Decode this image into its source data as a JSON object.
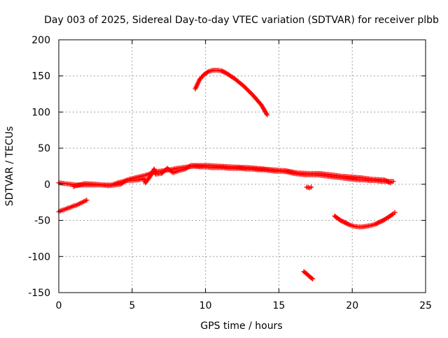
{
  "chart_data": {
    "type": "scatter",
    "title": "Day 003 of 2025, Sidereal Day-to-day VTEC variation (SDTVAR) for receiver plbb",
    "xlabel": "GPS time / hours",
    "ylabel": "SDTVAR / TECUs",
    "xlim": [
      0,
      25
    ],
    "ylim": [
      -150,
      200
    ],
    "xticks": [
      0,
      5,
      10,
      15,
      20,
      25
    ],
    "yticks": [
      -150,
      -100,
      -50,
      0,
      50,
      100,
      150,
      200
    ],
    "xtick_labels": [
      "0",
      "5",
      "10",
      "15",
      "20",
      "25"
    ],
    "ytick_labels": [
      "-150",
      "-100",
      "-50",
      "0",
      "50",
      "100",
      "150",
      "200"
    ],
    "grid": true,
    "legend": "none",
    "marker": "plus",
    "color": "#ff0000",
    "series": [
      {
        "name": "main-band",
        "points": [
          [
            0.0,
            2
          ],
          [
            0.4,
            1
          ],
          [
            0.8,
            0
          ],
          [
            1.2,
            -1
          ],
          [
            1.6,
            -1
          ],
          [
            2.0,
            -1
          ],
          [
            2.4,
            -1
          ],
          [
            2.8,
            -1
          ],
          [
            3.2,
            -1
          ],
          [
            3.6,
            -1
          ],
          [
            4.0,
            2
          ],
          [
            4.4,
            4
          ],
          [
            4.8,
            7
          ],
          [
            5.2,
            9
          ],
          [
            5.6,
            11
          ],
          [
            6.0,
            13
          ],
          [
            6.4,
            16
          ],
          [
            6.8,
            18
          ],
          [
            7.2,
            19
          ],
          [
            7.6,
            20
          ],
          [
            8.0,
            22
          ],
          [
            8.4,
            23
          ],
          [
            8.8,
            24
          ],
          [
            9.2,
            25
          ],
          [
            9.6,
            24
          ],
          [
            10.0,
            24
          ],
          [
            10.4,
            23
          ],
          [
            10.8,
            23
          ],
          [
            11.2,
            23
          ],
          [
            11.6,
            22
          ],
          [
            12.0,
            22
          ],
          [
            12.4,
            22
          ],
          [
            12.8,
            21
          ],
          [
            13.2,
            21
          ],
          [
            13.6,
            20
          ],
          [
            14.0,
            20
          ],
          [
            14.4,
            19
          ],
          [
            14.8,
            18
          ],
          [
            15.2,
            18
          ],
          [
            15.6,
            17
          ],
          [
            16.0,
            15
          ],
          [
            16.4,
            14
          ],
          [
            16.8,
            13
          ],
          [
            17.2,
            13
          ],
          [
            17.6,
            13
          ],
          [
            18.0,
            12
          ],
          [
            18.4,
            11
          ],
          [
            18.8,
            10
          ],
          [
            19.2,
            9
          ],
          [
            19.6,
            8
          ],
          [
            20.0,
            7
          ],
          [
            20.4,
            6
          ],
          [
            20.8,
            6
          ],
          [
            21.2,
            5
          ],
          [
            21.6,
            5
          ],
          [
            22.0,
            4
          ],
          [
            22.4,
            4
          ],
          [
            22.8,
            4
          ]
        ]
      },
      {
        "name": "main-band-scatter",
        "points": [
          [
            1.0,
            -3
          ],
          [
            1.8,
            1
          ],
          [
            2.6,
            0
          ],
          [
            3.4,
            -2
          ],
          [
            4.2,
            0
          ],
          [
            4.6,
            5
          ],
          [
            5.4,
            6
          ],
          [
            5.8,
            8
          ],
          [
            5.9,
            2
          ],
          [
            6.2,
            10
          ],
          [
            6.5,
            21
          ],
          [
            6.6,
            14
          ],
          [
            7.0,
            15
          ],
          [
            7.4,
            22
          ],
          [
            7.8,
            16
          ],
          [
            8.2,
            19
          ],
          [
            8.6,
            21
          ],
          [
            9.0,
            26
          ],
          [
            10.2,
            26
          ],
          [
            11.8,
            24
          ],
          [
            13.0,
            23
          ],
          [
            14.6,
            20
          ],
          [
            15.4,
            19
          ],
          [
            16.2,
            16
          ],
          [
            17.0,
            15
          ],
          [
            17.8,
            15
          ],
          [
            18.6,
            13
          ],
          [
            19.4,
            11
          ],
          [
            20.6,
            9
          ],
          [
            21.4,
            7
          ],
          [
            22.2,
            6
          ],
          [
            22.6,
            2
          ]
        ]
      },
      {
        "name": "early-negative-arc",
        "points": [
          [
            0.0,
            -38
          ],
          [
            0.2,
            -36
          ],
          [
            0.4,
            -35
          ],
          [
            0.6,
            -33
          ],
          [
            0.8,
            -32
          ],
          [
            1.0,
            -30
          ],
          [
            1.2,
            -29
          ],
          [
            1.4,
            -27
          ],
          [
            1.6,
            -25
          ],
          [
            1.8,
            -23
          ],
          [
            1.9,
            -22
          ]
        ]
      },
      {
        "name": "high-arc",
        "points": [
          [
            9.3,
            132
          ],
          [
            9.6,
            145
          ],
          [
            9.9,
            152
          ],
          [
            10.2,
            156
          ],
          [
            10.5,
            158
          ],
          [
            10.8,
            158
          ],
          [
            11.1,
            157
          ],
          [
            11.4,
            154
          ],
          [
            11.7,
            150
          ],
          [
            12.0,
            146
          ],
          [
            12.3,
            141
          ],
          [
            12.6,
            136
          ],
          [
            12.9,
            130
          ],
          [
            13.2,
            124
          ],
          [
            13.5,
            117
          ],
          [
            13.8,
            110
          ],
          [
            14.0,
            103
          ],
          [
            14.2,
            96
          ]
        ]
      },
      {
        "name": "small-negative-segment",
        "points": [
          [
            16.9,
            -4
          ],
          [
            17.1,
            -5
          ],
          [
            17.2,
            -4
          ]
        ]
      },
      {
        "name": "low-segment",
        "points": [
          [
            16.7,
            -121
          ],
          [
            16.9,
            -124
          ],
          [
            17.1,
            -128
          ],
          [
            17.3,
            -131
          ]
        ]
      },
      {
        "name": "late-negative-arc",
        "points": [
          [
            18.8,
            -44
          ],
          [
            19.0,
            -47
          ],
          [
            19.2,
            -50
          ],
          [
            19.5,
            -53
          ],
          [
            19.8,
            -56
          ],
          [
            20.1,
            -58
          ],
          [
            20.4,
            -59
          ],
          [
            20.7,
            -59
          ],
          [
            21.0,
            -58
          ],
          [
            21.3,
            -57
          ],
          [
            21.6,
            -55
          ],
          [
            21.9,
            -52
          ],
          [
            22.2,
            -49
          ],
          [
            22.5,
            -45
          ],
          [
            22.8,
            -41
          ],
          [
            22.9,
            -39
          ]
        ]
      }
    ]
  }
}
